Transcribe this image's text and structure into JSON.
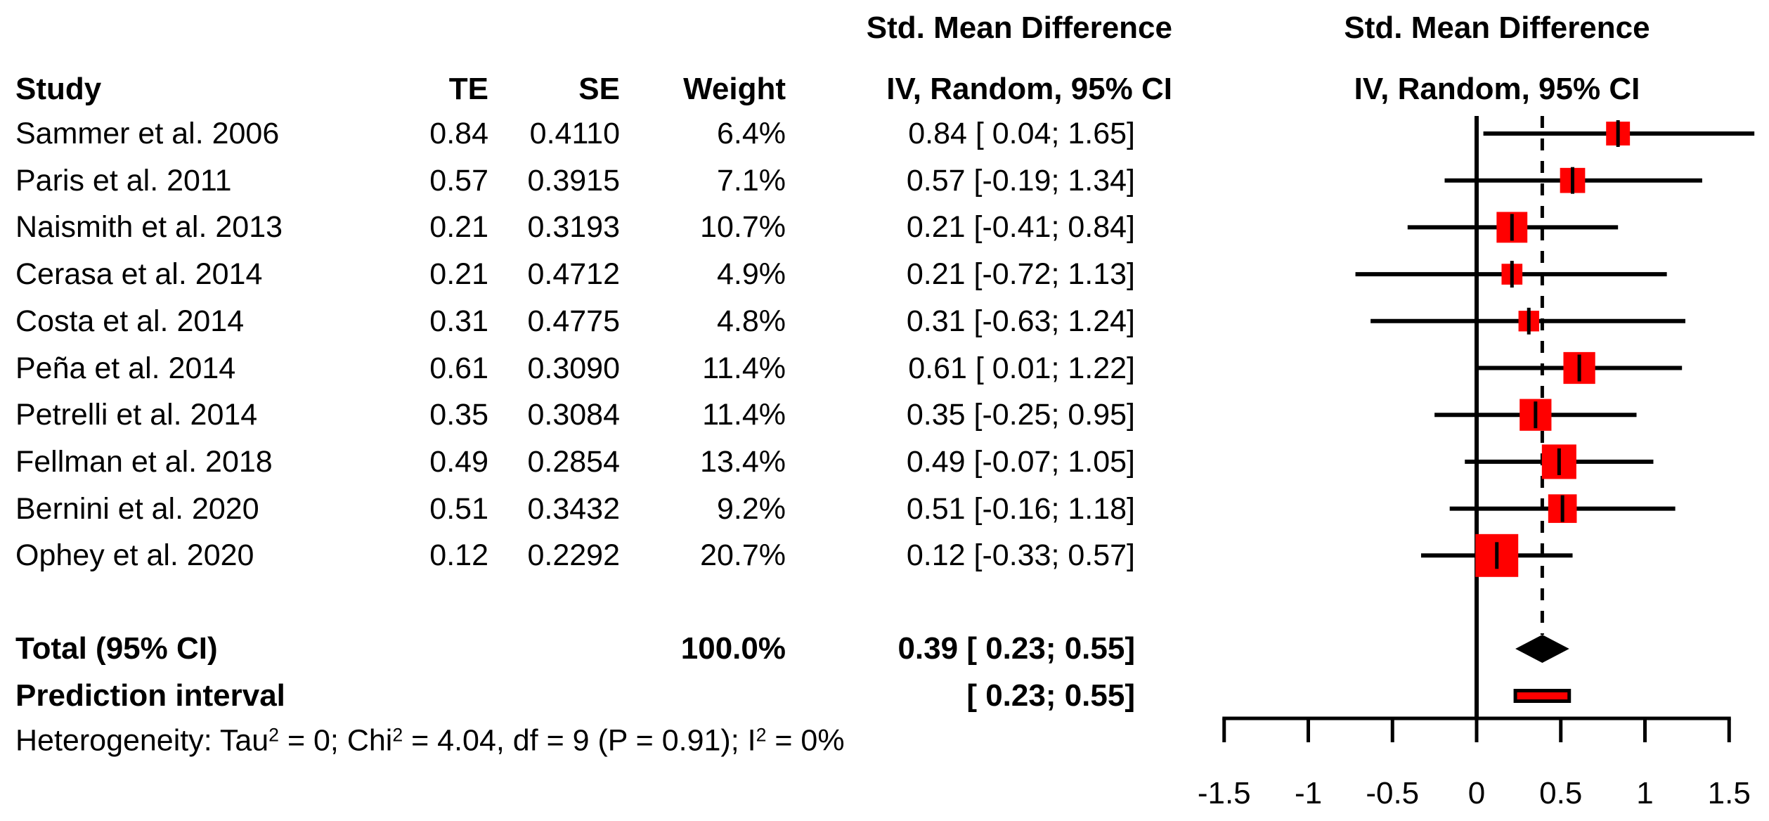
{
  "header": {
    "col_study": "Study",
    "col_te": "TE",
    "col_se": "SE",
    "col_weight": "Weight",
    "effect_header_line1": "Std. Mean Difference",
    "effect_header_line2": "IV, Random, 95% CI",
    "plot_header_line1": "Std. Mean Difference",
    "plot_header_line2": "IV, Random, 95% CI"
  },
  "chart_data": {
    "type": "forest",
    "effect_measure": "Std. Mean Difference",
    "model": "IV, Random, 95% CI",
    "studies": [
      {
        "study": "Sammer et al. 2006",
        "te_label": "0.84",
        "se_label": "0.4110",
        "weight_label": "6.4%",
        "ci_label": "0.84 [ 0.04; 1.65]",
        "te": 0.84,
        "lo": 0.04,
        "hi": 1.65,
        "weight": 6.4
      },
      {
        "study": "Paris et al. 2011",
        "te_label": "0.57",
        "se_label": "0.3915",
        "weight_label": "7.1%",
        "ci_label": "0.57 [-0.19; 1.34]",
        "te": 0.57,
        "lo": -0.19,
        "hi": 1.34,
        "weight": 7.1
      },
      {
        "study": "Naismith et al. 2013",
        "te_label": "0.21",
        "se_label": "0.3193",
        "weight_label": "10.7%",
        "ci_label": "0.21 [-0.41; 0.84]",
        "te": 0.21,
        "lo": -0.41,
        "hi": 0.84,
        "weight": 10.7
      },
      {
        "study": "Cerasa et al. 2014",
        "te_label": "0.21",
        "se_label": "0.4712",
        "weight_label": "4.9%",
        "ci_label": "0.21 [-0.72; 1.13]",
        "te": 0.21,
        "lo": -0.72,
        "hi": 1.13,
        "weight": 4.9
      },
      {
        "study": "Costa et al. 2014",
        "te_label": "0.31",
        "se_label": "0.4775",
        "weight_label": "4.8%",
        "ci_label": "0.31 [-0.63; 1.24]",
        "te": 0.31,
        "lo": -0.63,
        "hi": 1.24,
        "weight": 4.8
      },
      {
        "study": "Peña et al. 2014",
        "te_label": "0.61",
        "se_label": "0.3090",
        "weight_label": "11.4%",
        "ci_label": "0.61 [ 0.01; 1.22]",
        "te": 0.61,
        "lo": 0.01,
        "hi": 1.22,
        "weight": 11.4
      },
      {
        "study": "Petrelli et al. 2014",
        "te_label": "0.35",
        "se_label": "0.3084",
        "weight_label": "11.4%",
        "ci_label": "0.35 [-0.25; 0.95]",
        "te": 0.35,
        "lo": -0.25,
        "hi": 0.95,
        "weight": 11.4
      },
      {
        "study": "Fellman et al. 2018",
        "te_label": "0.49",
        "se_label": "0.2854",
        "weight_label": "13.4%",
        "ci_label": "0.49 [-0.07; 1.05]",
        "te": 0.49,
        "lo": -0.07,
        "hi": 1.05,
        "weight": 13.4
      },
      {
        "study": "Bernini et al. 2020",
        "te_label": "0.51",
        "se_label": "0.3432",
        "weight_label": "9.2%",
        "ci_label": "0.51 [-0.16; 1.18]",
        "te": 0.51,
        "lo": -0.16,
        "hi": 1.18,
        "weight": 9.2
      },
      {
        "study": "Ophey et al. 2020",
        "te_label": "0.12",
        "se_label": "0.2292",
        "weight_label": "20.7%",
        "ci_label": "0.12 [-0.33; 0.57]",
        "te": 0.12,
        "lo": -0.33,
        "hi": 0.57,
        "weight": 20.7
      }
    ],
    "total": {
      "label": "Total (95% CI)",
      "weight_label": "100.0%",
      "ci_label": "0.39 [ 0.23; 0.55]",
      "te": 0.39,
      "lo": 0.23,
      "hi": 0.55
    },
    "prediction": {
      "label": "Prediction interval",
      "ci_label": "[ 0.23; 0.55]",
      "lo": 0.23,
      "hi": 0.55
    },
    "heterogeneity_segments": [
      {
        "text": "Heterogeneity: Tau"
      },
      {
        "sup": "2"
      },
      {
        "text": " = 0; Chi"
      },
      {
        "sup": "2"
      },
      {
        "text": " = 4.04, df = 9 (P = 0.91); I"
      },
      {
        "sup": "2"
      },
      {
        "text": " = 0%"
      }
    ],
    "axis": {
      "xmin": -1.5,
      "xmax": 1.5,
      "ticks": [
        -1.5,
        -1,
        -0.5,
        0,
        0.5,
        1,
        1.5
      ],
      "tick_labels": [
        "-1.5",
        "-1",
        "-0.5",
        "0",
        "0.5",
        "1",
        "1.5"
      ],
      "zero_line": 0,
      "pooled_line": 0.39
    },
    "colors": {
      "square": "#FF0000",
      "line": "#000000",
      "diamond": "#000000",
      "prediction_fill": "#FF0000",
      "prediction_border": "#000000"
    }
  }
}
